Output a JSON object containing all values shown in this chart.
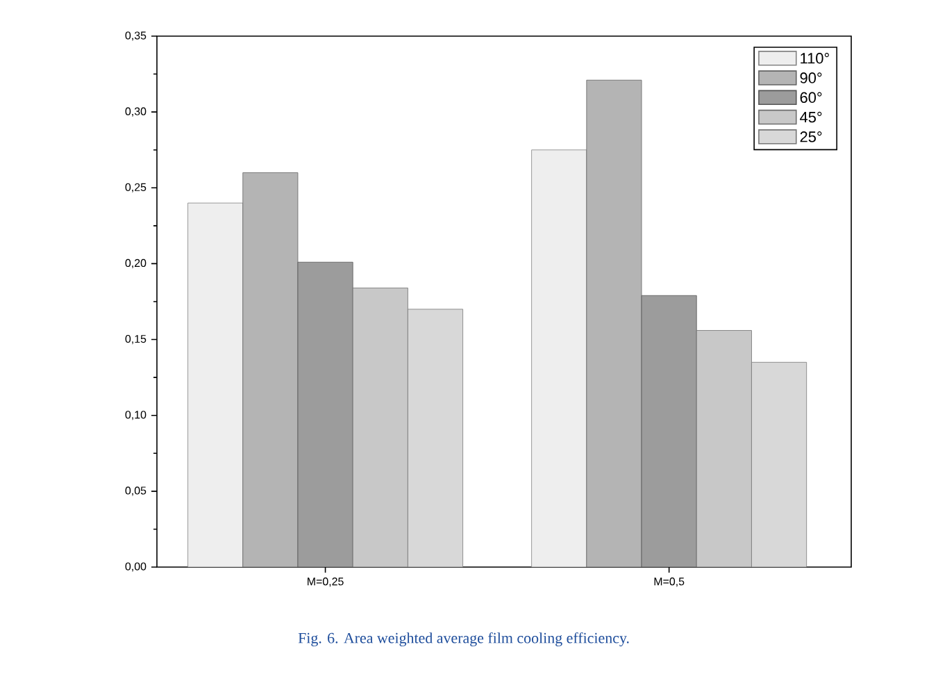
{
  "chart_data": {
    "type": "bar",
    "categories": [
      "M=0,25",
      "M=0,5"
    ],
    "series": [
      {
        "name": "110°",
        "color": "#eeeeee",
        "values": [
          0.24,
          0.275
        ]
      },
      {
        "name": "90°",
        "color": "#b4b4b4",
        "values": [
          0.26,
          0.321
        ]
      },
      {
        "name": "60°",
        "color": "#9c9c9c",
        "values": [
          0.201,
          0.179
        ]
      },
      {
        "name": "45°",
        "color": "#c8c8c8",
        "values": [
          0.184,
          0.156
        ]
      },
      {
        "name": "25°",
        "color": "#d8d8d8",
        "values": [
          0.17,
          0.135
        ]
      }
    ],
    "ylim": [
      0,
      0.35
    ],
    "yticks": [
      {
        "value": 0,
        "label": "0,00"
      },
      {
        "value": 0.05,
        "label": "0,05"
      },
      {
        "value": 0.1,
        "label": "0,10"
      },
      {
        "value": 0.15,
        "label": "0,15"
      },
      {
        "value": 0.2,
        "label": "0,20"
      },
      {
        "value": 0.25,
        "label": "0,25"
      },
      {
        "value": 0.3,
        "label": "0,30"
      },
      {
        "value": 0.35,
        "label": "0,35"
      }
    ],
    "legend": "top right",
    "annotations": [
      "Fig. 6. Area weighted average film cooling efficiency."
    ]
  }
}
